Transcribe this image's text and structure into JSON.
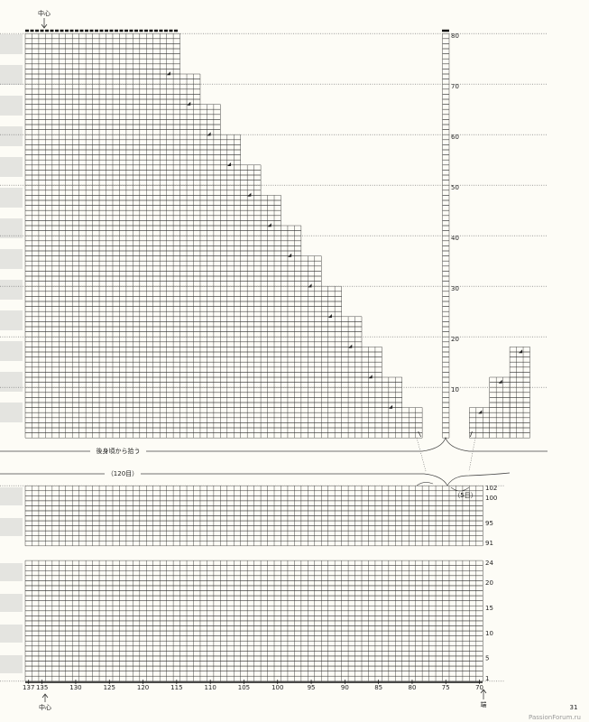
{
  "top_chart": {
    "center_label": "中心",
    "row_labels": [
      80,
      70,
      60,
      50,
      40,
      30,
      20,
      10
    ]
  },
  "pickup_label": "後身頃から拾う",
  "stitch_count_label": "（120目）",
  "side_count_label": "（5目）",
  "middle_chart": {
    "row_labels": [
      102,
      100,
      95,
      91
    ]
  },
  "bottom_chart": {
    "row_labels": [
      24,
      20,
      15,
      10,
      5,
      1
    ]
  },
  "x_axis": {
    "labels": [
      137,
      135,
      130,
      125,
      120,
      115,
      110,
      105,
      100,
      95,
      90,
      85,
      80,
      75,
      70
    ],
    "center_label": "中心",
    "edge_label": "端"
  },
  "page_number": "31",
  "watermark": "PassionForum.ru"
}
